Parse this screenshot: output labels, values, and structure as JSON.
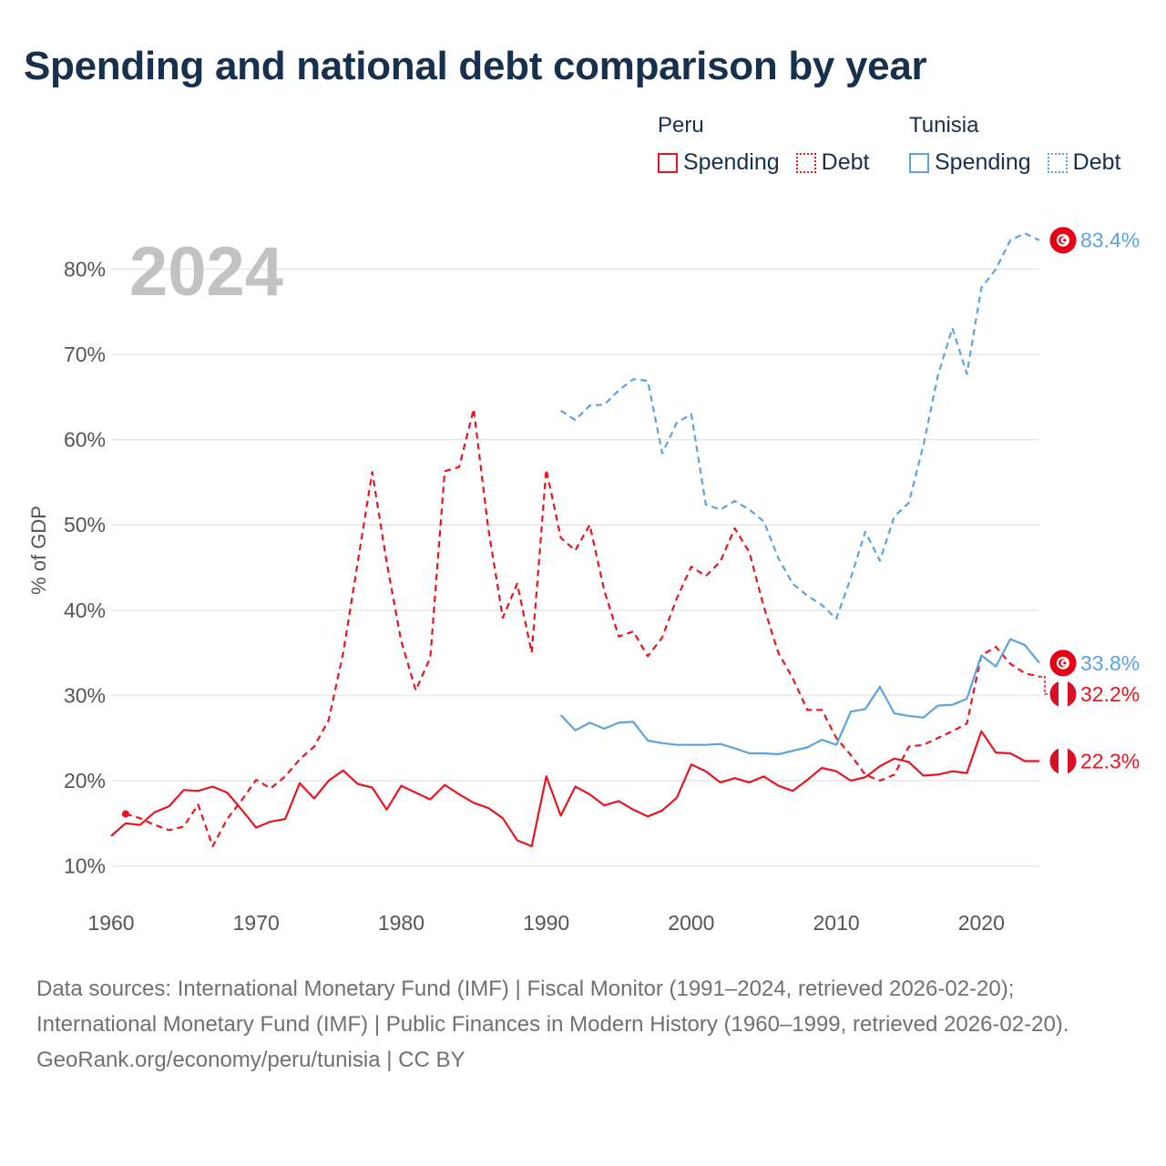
{
  "title": "Spending and national debt comparison by year",
  "legend": {
    "groups": [
      {
        "country": "Peru",
        "items": [
          {
            "label": "Spending",
            "style": "solid",
            "color": "#e8141f"
          },
          {
            "label": "Debt",
            "style": "dotted",
            "color": "#e8141f"
          }
        ]
      },
      {
        "country": "Tunisia",
        "items": [
          {
            "label": "Spending",
            "style": "solid",
            "color": "#5ba3e0"
          },
          {
            "label": "Debt",
            "style": "dotted",
            "color": "#5ba3e0"
          }
        ]
      }
    ]
  },
  "colors": {
    "peru": "#e8141f",
    "tunisia": "#5ba3e0",
    "title": "#17304d",
    "grid": "#e6e6e6",
    "year_watermark": "#c2c2c2"
  },
  "footer": {
    "sources": "Data sources: International Monetary Fund (IMF) | Fiscal Monitor (1991–2024, retrieved 2026-02-20); International Monetary Fund (IMF) | Public Finances in Modern History (1960–1999, retrieved 2026-02-20).",
    "credit": "GeoRank.org/economy/peru/tunisia | CC BY"
  },
  "chart_data": {
    "type": "line",
    "year_label": "2024",
    "ylabel": "% of GDP",
    "xlim": [
      1960,
      2024
    ],
    "ylim": [
      6,
      87
    ],
    "x_ticks": [
      1960,
      1970,
      1980,
      1990,
      2000,
      2010,
      2020
    ],
    "y_ticks": [
      10,
      20,
      30,
      40,
      50,
      60,
      70,
      80
    ],
    "y_tick_labels": [
      "10%",
      "20%",
      "30%",
      "40%",
      "50%",
      "60%",
      "70%",
      "80%"
    ],
    "series": [
      {
        "name": "Peru Spending",
        "country": "Peru",
        "flag": "peru",
        "dashed": false,
        "color": "#e8141f",
        "end_label": "22.3%",
        "start_marker": false,
        "x": [
          1960,
          1961,
          1962,
          1963,
          1964,
          1965,
          1966,
          1967,
          1968,
          1969,
          1970,
          1971,
          1972,
          1973,
          1974,
          1975,
          1976,
          1977,
          1978,
          1979,
          1980,
          1981,
          1982,
          1983,
          1984,
          1985,
          1986,
          1987,
          1988,
          1989,
          1990,
          1991,
          1992,
          1993,
          1994,
          1995,
          1996,
          1997,
          1998,
          1999,
          2000,
          2001,
          2002,
          2003,
          2004,
          2005,
          2006,
          2007,
          2008,
          2009,
          2010,
          2011,
          2012,
          2013,
          2014,
          2015,
          2016,
          2017,
          2018,
          2019,
          2020,
          2021,
          2022,
          2023,
          2024
        ],
        "values": [
          13.5,
          15.0,
          14.8,
          16.3,
          17.0,
          18.9,
          18.8,
          19.3,
          18.6,
          16.6,
          14.5,
          15.2,
          15.5,
          19.7,
          17.9,
          20.0,
          21.2,
          19.6,
          19.2,
          16.6,
          19.4,
          18.6,
          17.8,
          19.5,
          18.4,
          17.4,
          16.8,
          15.6,
          13.0,
          12.3,
          20.5,
          15.9,
          19.3,
          18.4,
          17.1,
          17.6,
          16.6,
          15.8,
          16.5,
          18.0,
          21.9,
          21.1,
          19.8,
          20.3,
          19.8,
          20.5,
          19.4,
          18.8,
          20.1,
          21.5,
          21.1,
          20.0,
          20.4,
          21.7,
          22.6,
          22.2,
          20.6,
          20.7,
          21.1,
          20.9,
          25.8,
          23.3,
          23.2,
          22.3,
          22.3
        ]
      },
      {
        "name": "Peru Debt",
        "country": "Peru",
        "flag": "peru",
        "dashed": true,
        "color": "#e8141f",
        "end_label": "32.2%",
        "start_marker": true,
        "x": [
          1961,
          1962,
          1963,
          1964,
          1965,
          1966,
          1967,
          1968,
          1969,
          1970,
          1971,
          1972,
          1973,
          1974,
          1975,
          1976,
          1977,
          1978,
          1979,
          1980,
          1981,
          1982,
          1983,
          1984,
          1985,
          1986,
          1987,
          1988,
          1989,
          1990,
          1991,
          1992,
          1993,
          1994,
          1995,
          1996,
          1997,
          1998,
          1999,
          2000,
          2001,
          2002,
          2003,
          2004,
          2005,
          2006,
          2007,
          2008,
          2009,
          2010,
          2011,
          2012,
          2013,
          2014,
          2015,
          2016,
          2017,
          2018,
          2019,
          2020,
          2021,
          2022,
          2023,
          2024
        ],
        "values": [
          16.1,
          15.6,
          14.8,
          14.2,
          14.6,
          17.2,
          12.3,
          15.5,
          17.7,
          20.1,
          19.1,
          20.5,
          22.5,
          24.0,
          27.1,
          35.0,
          45.6,
          56.2,
          45.6,
          36.4,
          30.6,
          34.4,
          56.3,
          56.8,
          63.6,
          49.6,
          39.1,
          43.1,
          35.0,
          56.5,
          48.5,
          47.0,
          50.0,
          42.3,
          36.9,
          37.5,
          34.6,
          36.8,
          41.4,
          45.1,
          44.0,
          45.7,
          49.6,
          46.8,
          40.4,
          35.0,
          32.0,
          28.3,
          28.3,
          25.0,
          23.0,
          20.7,
          20.0,
          20.7,
          24.0,
          24.2,
          25.0,
          25.8,
          26.7,
          34.7,
          35.7,
          33.7,
          32.6,
          32.2
        ]
      },
      {
        "name": "Tunisia Spending",
        "country": "Tunisia",
        "flag": "tunisia",
        "dashed": false,
        "color": "#5ba3e0",
        "end_label": "33.8%",
        "start_marker": false,
        "x": [
          1991,
          1992,
          1993,
          1994,
          1995,
          1996,
          1997,
          1998,
          1999,
          2000,
          2001,
          2002,
          2003,
          2004,
          2005,
          2006,
          2007,
          2008,
          2009,
          2010,
          2011,
          2012,
          2013,
          2014,
          2015,
          2016,
          2017,
          2018,
          2019,
          2020,
          2021,
          2022,
          2023,
          2024
        ],
        "values": [
          27.7,
          25.9,
          26.8,
          26.1,
          26.8,
          26.9,
          24.7,
          24.4,
          24.2,
          24.2,
          24.2,
          24.3,
          23.8,
          23.2,
          23.2,
          23.1,
          23.5,
          23.9,
          24.8,
          24.2,
          28.1,
          28.4,
          31.0,
          27.9,
          27.6,
          27.4,
          28.8,
          28.9,
          29.6,
          34.7,
          33.4,
          36.6,
          35.9,
          33.8
        ]
      },
      {
        "name": "Tunisia Debt",
        "country": "Tunisia",
        "flag": "tunisia",
        "dashed": true,
        "color": "#5ba3e0",
        "end_label": "83.4%",
        "start_marker": false,
        "x": [
          1991,
          1992,
          1993,
          1994,
          1995,
          1996,
          1997,
          1998,
          1999,
          2000,
          2001,
          2002,
          2003,
          2004,
          2005,
          2006,
          2007,
          2008,
          2009,
          2010,
          2011,
          2012,
          2013,
          2014,
          2015,
          2016,
          2017,
          2018,
          2019,
          2020,
          2021,
          2022,
          2023,
          2024
        ],
        "values": [
          63.4,
          62.3,
          64.0,
          64.1,
          65.8,
          67.1,
          66.9,
          58.4,
          62.0,
          63.0,
          52.4,
          51.8,
          52.8,
          51.8,
          50.4,
          46.1,
          43.1,
          41.7,
          40.6,
          39.0,
          43.8,
          49.2,
          45.8,
          51.0,
          52.6,
          59.3,
          67.5,
          73.1,
          67.7,
          77.8,
          80.0,
          83.4,
          84.2,
          83.4
        ]
      }
    ]
  }
}
